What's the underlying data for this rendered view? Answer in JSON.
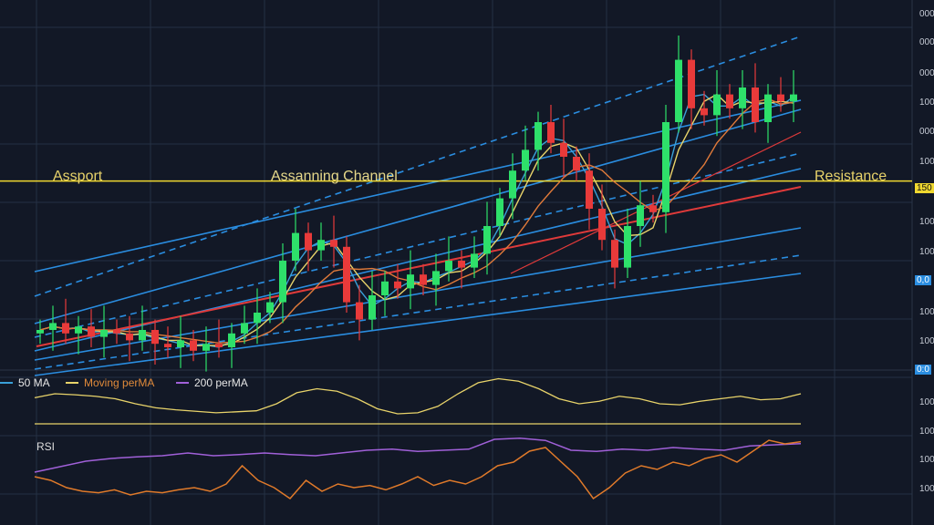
{
  "annotations": {
    "support": "Assport",
    "channel": "Assanning Channel",
    "resistance": "Resistance"
  },
  "legend": [
    {
      "label": "50 MA",
      "color": "#3aa0d8",
      "text_color": "#e6e6e6"
    },
    {
      "label": "Moving perMA",
      "color": "#e8d36a",
      "text_color": "#e08a3a"
    },
    {
      "label": "200 perMA",
      "color": "#a060d8",
      "text_color": "#e6e6e6"
    }
  ],
  "rsi_label": "RSI",
  "price_axis": [
    {
      "label": "000"
    },
    {
      "label": "000"
    },
    {
      "label": "000"
    },
    {
      "label": "100"
    },
    {
      "label": "000"
    },
    {
      "label": "100"
    },
    {
      "label": "150",
      "highlight": "#f0d830"
    },
    {
      "label": "100"
    },
    {
      "label": "100"
    },
    {
      "label": "0,0",
      "highlight": "#2a8de0"
    },
    {
      "label": "100"
    },
    {
      "label": "100"
    },
    {
      "label": "0:0",
      "highlight": "#2a8de0"
    },
    {
      "label": "100"
    },
    {
      "label": "100"
    },
    {
      "label": "100"
    },
    {
      "label": "100"
    }
  ],
  "colors": {
    "background": "#121826",
    "up": "#2ee06a",
    "down": "#e83a3a",
    "channel": "#2a8de0",
    "resistance": "#f0d830",
    "trend": "#e03a3a",
    "rsi": "#e07a2a",
    "grid": "#243044"
  },
  "chart_data": {
    "type": "candlestick",
    "close": [
      10,
      12,
      9,
      11,
      8,
      10,
      9,
      7,
      10,
      6,
      5,
      7,
      4,
      6,
      5,
      9,
      12,
      15,
      18,
      30,
      38,
      33,
      36,
      34,
      18,
      13,
      20,
      24,
      22,
      26,
      23,
      27,
      30,
      28,
      32,
      40,
      48,
      56,
      62,
      70,
      64,
      60,
      56,
      45,
      36,
      28,
      40,
      46,
      44,
      70,
      88,
      74,
      72,
      78,
      74,
      80,
      70,
      78,
      76,
      78
    ],
    "resistance_level": 53,
    "ma_oscillator": [
      52,
      60,
      58,
      55,
      50,
      40,
      32,
      28,
      25,
      22,
      24,
      26,
      40,
      62,
      70,
      65,
      50,
      30,
      20,
      22,
      35,
      60,
      82,
      90,
      85,
      70,
      50,
      40,
      45,
      55,
      50,
      40,
      38,
      45,
      50,
      55,
      48,
      50,
      60
    ],
    "rsi_upper": [
      20,
      30,
      40,
      45,
      48,
      50,
      55,
      50,
      52,
      55,
      52,
      50,
      55,
      60,
      62,
      58,
      60,
      62,
      80,
      82,
      78,
      60,
      58,
      62,
      60,
      65,
      62,
      60,
      68,
      70,
      72
    ],
    "rsi": [
      40,
      35,
      25,
      20,
      18,
      22,
      15,
      20,
      18,
      22,
      25,
      20,
      30,
      55,
      35,
      25,
      10,
      35,
      20,
      30,
      25,
      28,
      22,
      30,
      40,
      28,
      35,
      30,
      40,
      55,
      60,
      75,
      80,
      60,
      40,
      10,
      25,
      45,
      55,
      50,
      60,
      55,
      65,
      70,
      60,
      75,
      90,
      85,
      88
    ]
  }
}
